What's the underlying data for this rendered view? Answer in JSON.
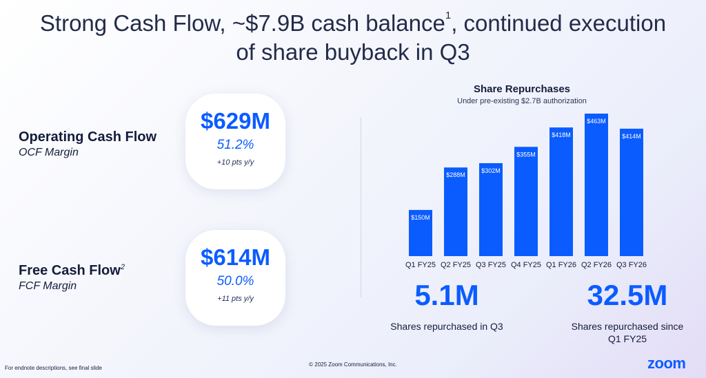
{
  "title": {
    "line1_a": "Strong Cash Flow, ~$7.9B cash balance",
    "line1_sup": "1",
    "line1_b": ", continued execution",
    "line2": "of share buyback in Q3"
  },
  "ocf": {
    "label": "Operating Cash Flow",
    "sublabel": "OCF Margin",
    "value": "$629M",
    "margin": "51.2%",
    "delta": "+10 pts y/y"
  },
  "fcf": {
    "label": "Free Cash Flow",
    "label_sup": "2",
    "sublabel": "FCF Margin",
    "value": "$614M",
    "margin": "50.0%",
    "delta": "+11 pts y/y"
  },
  "chart_data": {
    "type": "bar",
    "title": "Share Repurchases",
    "subtitle": "Under pre-existing $2.7B authorization",
    "categories": [
      "Q1 FY25",
      "Q2 FY25",
      "Q3 FY25",
      "Q4 FY25",
      "Q1 FY26",
      "Q2 FY26",
      "Q3 FY26"
    ],
    "values": [
      150,
      288,
      302,
      355,
      418,
      463,
      414
    ],
    "data_labels": [
      "$150M",
      "$288M",
      "$302M",
      "$355M",
      "$418M",
      "$463M",
      "$414M"
    ],
    "unit": "$M",
    "bar_color": "#0b5cff",
    "grid": false,
    "legend": "none"
  },
  "stats": {
    "q3_value": "5.1M",
    "q3_label": "Shares repurchased in Q3",
    "since_value": "32.5M",
    "since_label_line1": "Shares repurchased since",
    "since_label_line2": "Q1 FY25"
  },
  "footer": {
    "endnote": "For endnote descriptions, see final slide",
    "copyright": "© 2025 Zoom Communications, Inc.",
    "logo": "zoom"
  },
  "colors": {
    "accent": "#0b5cff",
    "text": "#141c3a"
  }
}
